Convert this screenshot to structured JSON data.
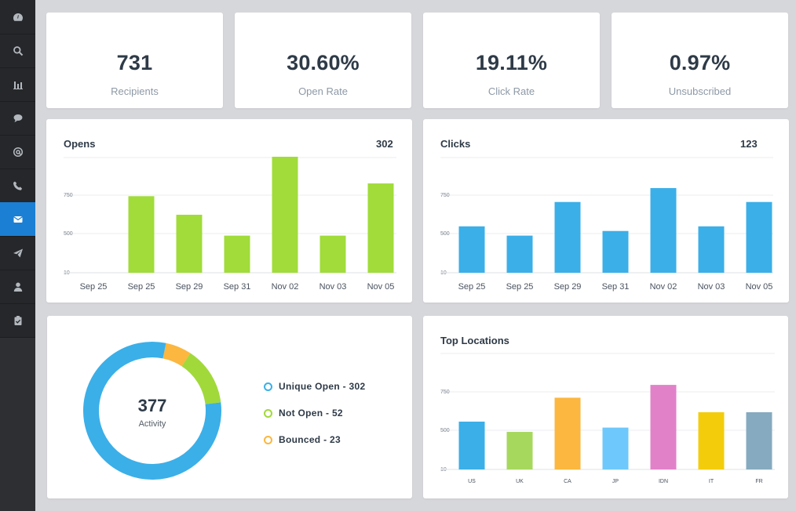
{
  "sidebar": {
    "items": [
      {
        "icon": "dashboard-icon",
        "active": false
      },
      {
        "icon": "search-icon",
        "active": false
      },
      {
        "icon": "bar-chart-icon",
        "active": false
      },
      {
        "icon": "chat-bubble-icon",
        "active": false
      },
      {
        "icon": "at-sign-icon",
        "active": false
      },
      {
        "icon": "phone-icon",
        "active": false
      },
      {
        "icon": "envelope-icon",
        "active": true
      },
      {
        "icon": "paper-plane-icon",
        "active": false
      },
      {
        "icon": "user-icon",
        "active": false
      },
      {
        "icon": "clipboard-check-icon",
        "active": false
      }
    ],
    "active_color": "#1b7fd4"
  },
  "stats": [
    {
      "value": "731",
      "label": "Recipients"
    },
    {
      "value": "30.60%",
      "label": "Open Rate"
    },
    {
      "value": "19.11%",
      "label": "Click Rate"
    },
    {
      "value": "0.97%",
      "label": "Unsubscribed"
    }
  ],
  "opens": {
    "title": "Opens",
    "total": "302"
  },
  "clicks": {
    "title": "Clicks",
    "total": "123"
  },
  "activity": {
    "value": "377",
    "label": "Activity",
    "legend": [
      {
        "text": "Unique Open - 302",
        "color": "#3bafe8"
      },
      {
        "text": "Not Open - 52",
        "color": "#a1d93b"
      },
      {
        "text": "Bounced - 23",
        "color": "#fbb73f"
      }
    ]
  },
  "locations": {
    "title": "Top Locations"
  },
  "chart_data": [
    {
      "type": "bar",
      "title": "Opens",
      "color": "#a1dc3a",
      "categories": [
        "Sep 25",
        "Sep 25",
        "Sep 29",
        "Sep 31",
        "Nov 02",
        "Nov 03",
        "Nov 05"
      ],
      "yticks": [
        "750",
        "500",
        "10"
      ],
      "values": [
        0,
        0.66,
        0.5,
        0.32,
        1.0,
        0.32,
        0.77
      ],
      "grid": true
    },
    {
      "type": "bar",
      "title": "Clicks",
      "color": "#3bafe8",
      "categories": [
        "Sep 25",
        "Sep 25",
        "Sep 29",
        "Sep 31",
        "Nov 02",
        "Nov 03",
        "Nov 05"
      ],
      "yticks": [
        "750",
        "500",
        "10"
      ],
      "values": [
        0.4,
        0.32,
        0.61,
        0.36,
        0.73,
        0.4,
        0.61
      ],
      "grid": true
    },
    {
      "type": "pie",
      "donut": true,
      "center": "377",
      "slices": [
        {
          "label": "Unique Open",
          "value": 302,
          "color": "#3bafe8"
        },
        {
          "label": "Not Open",
          "value": 52,
          "color": "#a1d93b"
        },
        {
          "label": "Bounced",
          "value": 23,
          "color": "#fbb73f"
        }
      ]
    },
    {
      "type": "bar",
      "title": "Top Locations",
      "categories": [
        "US",
        "UK",
        "CA",
        "JP",
        "IDN",
        "IT",
        "FR"
      ],
      "yticks": [
        "750",
        "500",
        "10"
      ],
      "values": [
        0.56,
        0.44,
        0.84,
        0.49,
        0.99,
        0.67,
        0.67
      ],
      "colors": [
        "#3bafe8",
        "#a6d85e",
        "#fbb73f",
        "#6ec8fb",
        "#e182c9",
        "#f3cd0b",
        "#86aabf"
      ],
      "grid": true
    }
  ]
}
